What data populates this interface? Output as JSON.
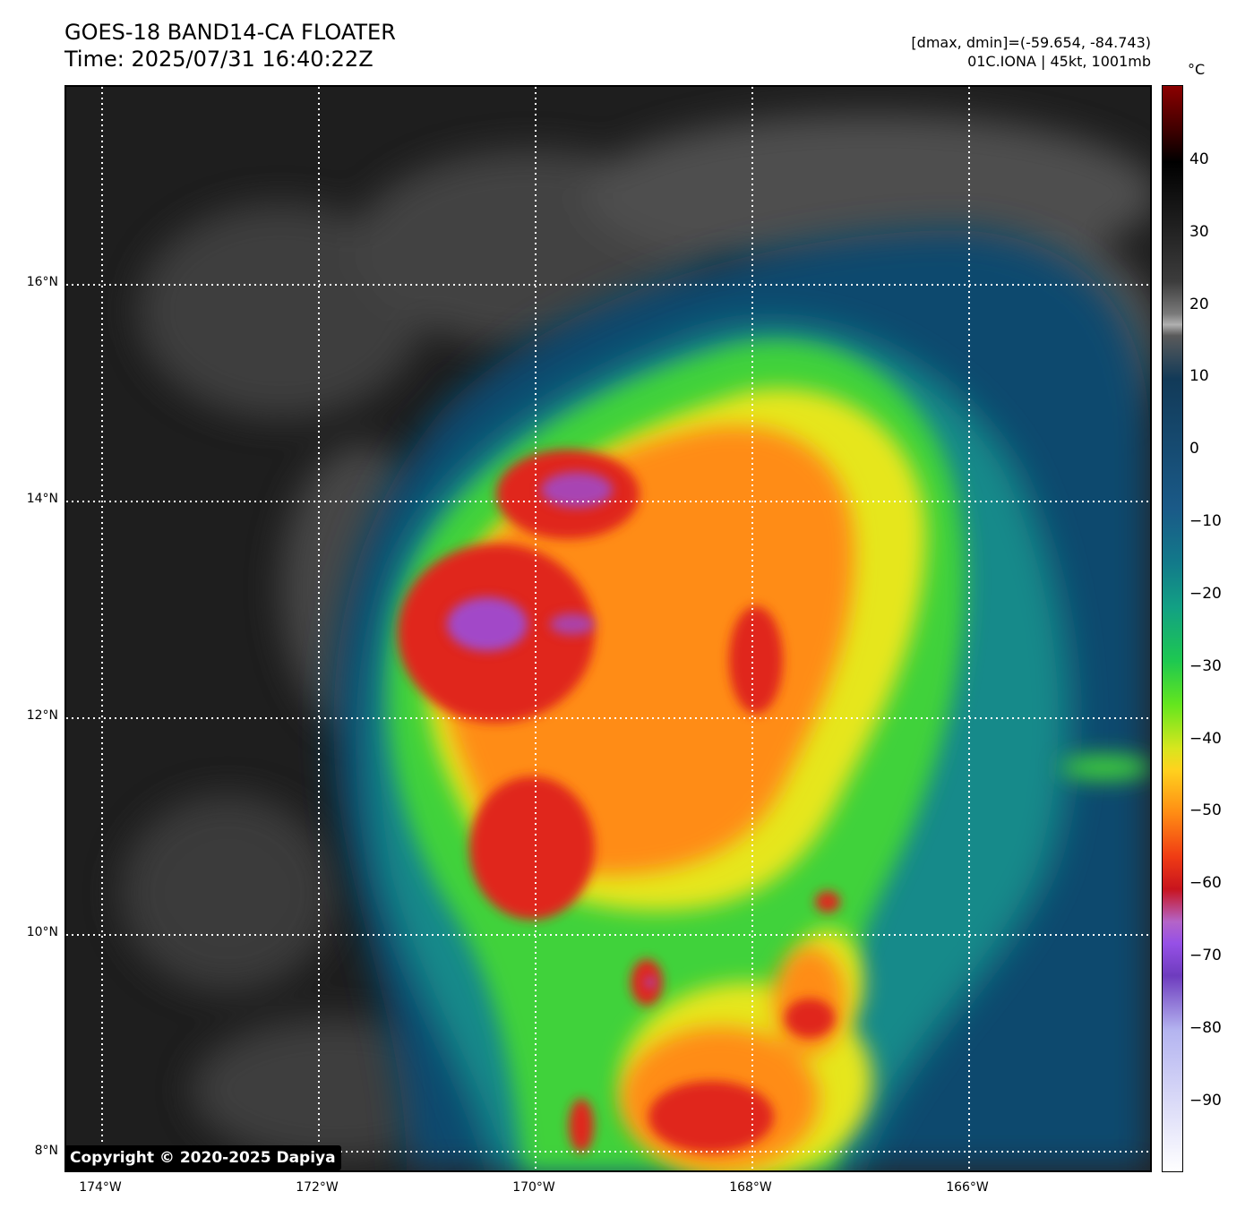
{
  "header": {
    "title_line1": "GOES-18 BAND14-CA FLOATER",
    "title_line2": "Time: 2025/07/31 16:40:22Z",
    "stats_line": "[dmax, dmin]=(-59.654, -84.743)",
    "storm_line": "01C.IONA | 45kt, 1001mb"
  },
  "copyright": "Copyright © 2020-2025 Dapiya",
  "map": {
    "lat_range": [
      7.9,
      17.9
    ],
    "lon_range": [
      -174.33,
      -164.33
    ],
    "lat_labels": [
      {
        "value": 16,
        "text": "16°N"
      },
      {
        "value": 14,
        "text": "14°N"
      },
      {
        "value": 12,
        "text": "12°N"
      },
      {
        "value": 10,
        "text": "10°N"
      },
      {
        "value": 8,
        "text": "8°N"
      }
    ],
    "lon_labels": [
      {
        "value": -174,
        "text": "174°W"
      },
      {
        "value": -172,
        "text": "172°W"
      },
      {
        "value": -170,
        "text": "170°W"
      },
      {
        "value": -168,
        "text": "168°W"
      },
      {
        "value": -166,
        "text": "166°W"
      }
    ],
    "gridlines": true
  },
  "colorbar": {
    "unit": "°C",
    "range": [
      -100,
      50
    ],
    "ticks": [
      {
        "value": 40,
        "text": "40"
      },
      {
        "value": 30,
        "text": "30"
      },
      {
        "value": 20,
        "text": "20"
      },
      {
        "value": 10,
        "text": "10"
      },
      {
        "value": 0,
        "text": "0"
      },
      {
        "value": -10,
        "text": "−10"
      },
      {
        "value": -20,
        "text": "−20"
      },
      {
        "value": -30,
        "text": "−30"
      },
      {
        "value": -40,
        "text": "−40"
      },
      {
        "value": -50,
        "text": "−50"
      },
      {
        "value": -60,
        "text": "−60"
      },
      {
        "value": -70,
        "text": "−70"
      },
      {
        "value": -80,
        "text": "−80"
      },
      {
        "value": -90,
        "text": "−90"
      }
    ]
  },
  "colors": {
    "background_clear": "#1e1e1e",
    "low_cloud_gray": "#5a5a5a",
    "ocean_blue": "#0f4a6e",
    "teal": "#128a8a",
    "green": "#3fd23a",
    "yellow": "#e6e61e",
    "orange": "#ff8c14",
    "red": "#e0281e",
    "purple": "#9650e6"
  }
}
